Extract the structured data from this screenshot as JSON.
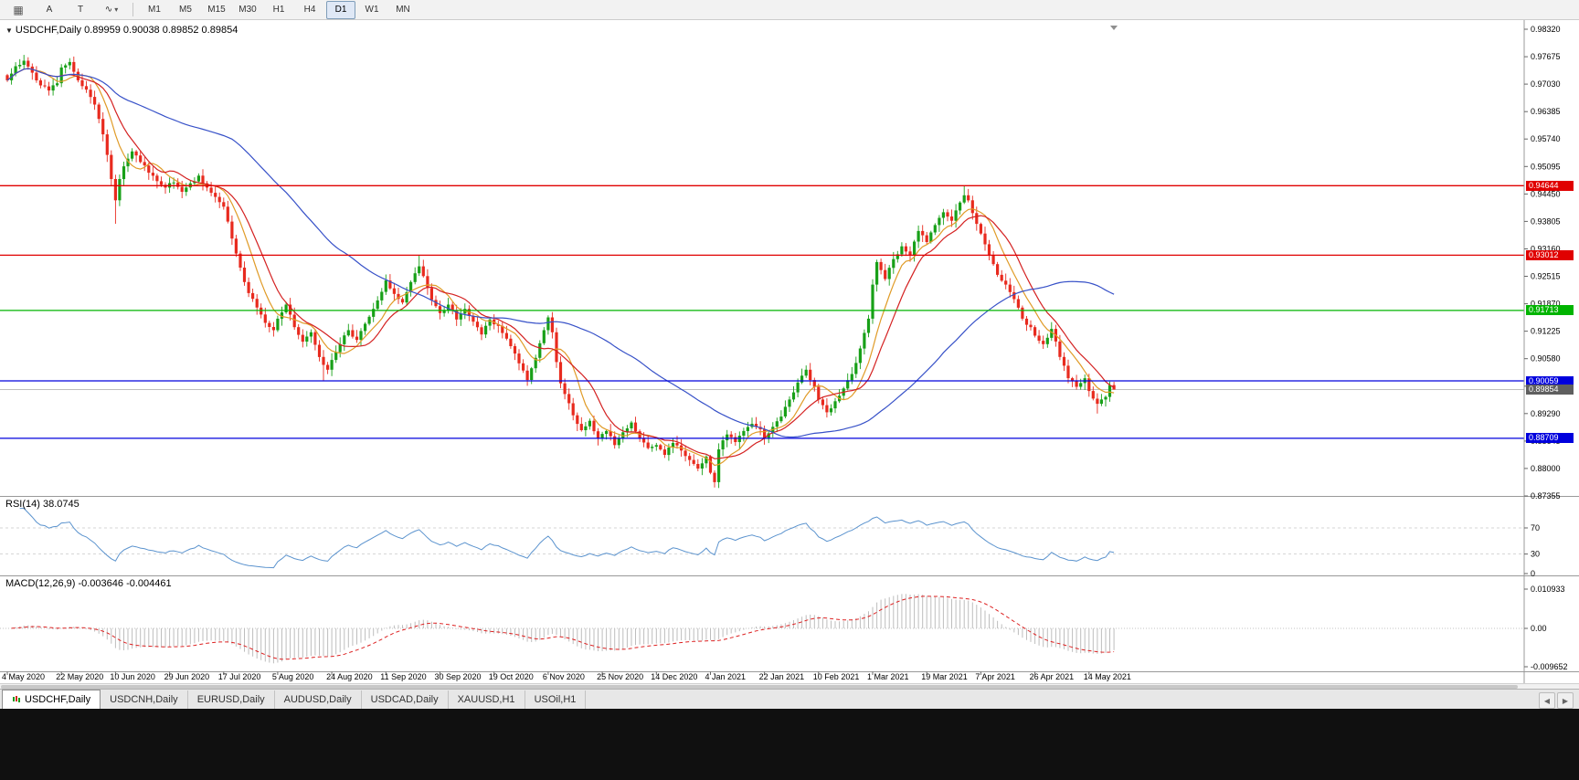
{
  "toolbar": {
    "tools": [
      {
        "glyph": "▦"
      },
      {
        "glyph": "A"
      },
      {
        "glyph": "T"
      },
      {
        "glyph": "∿"
      }
    ],
    "dropdown_caret": "▾",
    "timeframes": [
      "M1",
      "M5",
      "M15",
      "M30",
      "H1",
      "H4",
      "D1",
      "W1",
      "MN"
    ],
    "active_timeframe": "D1"
  },
  "chart": {
    "collapse_glyph": "▼",
    "title_line": "USDCHF,Daily 0.89959 0.90038 0.89852 0.89854",
    "symbol": "USDCHF",
    "period": "Daily",
    "open": "0.89959",
    "high": "0.90038",
    "low": "0.89852",
    "close": "0.89854"
  },
  "price_scale_labels": [
    "0.98320",
    "0.97675",
    "0.97030",
    "0.96385",
    "0.95740",
    "0.95095",
    "0.94450",
    "0.93805",
    "0.93160",
    "0.92515",
    "0.91870",
    "0.91225",
    "0.90580",
    "0.89935",
    "0.89290",
    "0.88645",
    "0.88000",
    "0.87355"
  ],
  "levels": [
    {
      "price": 0.94644,
      "label": "0.94644",
      "color": "#e00000"
    },
    {
      "price": 0.93012,
      "label": "0.93012",
      "color": "#e00000"
    },
    {
      "price": 0.91713,
      "label": "0.91713",
      "color": "#00b400"
    },
    {
      "price": 0.90059,
      "label": "0.90059",
      "color": "#0000dd"
    },
    {
      "price": 0.88709,
      "label": "0.88709",
      "color": "#0000dd"
    }
  ],
  "current_price": {
    "value": 0.89854,
    "label": "0.89854",
    "color": "#5f5f5f"
  },
  "indicators": {
    "rsi": {
      "label": "RSI(14) 38.0745",
      "period": 14,
      "value": 38.0745,
      "levels": [
        70,
        30
      ],
      "scale_labels": [
        "70",
        "30",
        "0"
      ],
      "color": "#5b93ce"
    },
    "macd": {
      "label": "MACD(12,26,9) -0.003646 -0.004461",
      "macd_value": -0.003646,
      "signal_value": -0.004461,
      "scale_labels": [
        "0.010933",
        "0.00",
        "-0.009652"
      ],
      "histogram_color": "#bdbdbd",
      "signal_color": "#dd2020"
    }
  },
  "date_labels": [
    "4 May 2020",
    "22 May 2020",
    "10 Jun 2020",
    "29 Jun 2020",
    "17 Jul 2020",
    "5 Aug 2020",
    "24 Aug 2020",
    "11 Sep 2020",
    "30 Sep 2020",
    "19 Oct 2020",
    "6 Nov 2020",
    "25 Nov 2020",
    "14 Dec 2020",
    "4 Jan 2021",
    "22 Jan 2021",
    "10 Feb 2021",
    "1 Mar 2021",
    "19 Mar 2021",
    "7 Apr 2021",
    "26 Apr 2021",
    "14 May 2021"
  ],
  "tabs": [
    {
      "label": "USDCHF,Daily",
      "active": true
    },
    {
      "label": "USDCNH,Daily",
      "active": false
    },
    {
      "label": "EURUSD,Daily",
      "active": false
    },
    {
      "label": "AUDUSD,Daily",
      "active": false
    },
    {
      "label": "USDCAD,Daily",
      "active": false
    },
    {
      "label": "XAUUSD,H1",
      "active": false
    },
    {
      "label": "USOil,H1",
      "active": false
    }
  ],
  "tab_scroll": {
    "left": "◀",
    "right": "▶"
  },
  "chart_data": {
    "type": "candlestick",
    "symbol": "USDCHF",
    "timeframe": "D1",
    "price_axis": {
      "max": 0.9832,
      "min": 0.87355,
      "tick_step": 0.00645
    },
    "bar_count": 267,
    "bars_per_label": 13,
    "bull_color": "#18a018",
    "bear_color": "#e82a1e",
    "noise_seed": 7,
    "close_keyframes": [
      [
        0,
        0.9712
      ],
      [
        2,
        0.9745
      ],
      [
        4,
        0.9758
      ],
      [
        6,
        0.973
      ],
      [
        8,
        0.97
      ],
      [
        10,
        0.9688
      ],
      [
        12,
        0.9705
      ],
      [
        13,
        0.9742
      ],
      [
        15,
        0.9755
      ],
      [
        17,
        0.9712
      ],
      [
        19,
        0.969
      ],
      [
        21,
        0.9655
      ],
      [
        23,
        0.9585
      ],
      [
        25,
        0.948
      ],
      [
        26,
        0.943
      ],
      [
        27,
        0.948
      ],
      [
        28,
        0.951
      ],
      [
        30,
        0.9545
      ],
      [
        32,
        0.952
      ],
      [
        34,
        0.9495
      ],
      [
        36,
        0.9475
      ],
      [
        38,
        0.946
      ],
      [
        40,
        0.9472
      ],
      [
        42,
        0.945
      ],
      [
        44,
        0.947
      ],
      [
        46,
        0.9488
      ],
      [
        48,
        0.946
      ],
      [
        50,
        0.9438
      ],
      [
        52,
        0.9415
      ],
      [
        53,
        0.938
      ],
      [
        54,
        0.934
      ],
      [
        55,
        0.9305
      ],
      [
        56,
        0.9272
      ],
      [
        57,
        0.9238
      ],
      [
        58,
        0.9212
      ],
      [
        60,
        0.9178
      ],
      [
        62,
        0.9142
      ],
      [
        64,
        0.9125
      ],
      [
        65,
        0.9152
      ],
      [
        67,
        0.9185
      ],
      [
        69,
        0.9132
      ],
      [
        71,
        0.9098
      ],
      [
        73,
        0.912
      ],
      [
        75,
        0.9062
      ],
      [
        77,
        0.9032
      ],
      [
        78,
        0.9055
      ],
      [
        80,
        0.9092
      ],
      [
        82,
        0.9125
      ],
      [
        84,
        0.9102
      ],
      [
        86,
        0.914
      ],
      [
        88,
        0.9175
      ],
      [
        90,
        0.9215
      ],
      [
        91,
        0.9242
      ],
      [
        93,
        0.921
      ],
      [
        95,
        0.919
      ],
      [
        97,
        0.9238
      ],
      [
        99,
        0.9275
      ],
      [
        100,
        0.9252
      ],
      [
        102,
        0.9196
      ],
      [
        104,
        0.9165
      ],
      [
        106,
        0.9185
      ],
      [
        108,
        0.915
      ],
      [
        110,
        0.9175
      ],
      [
        112,
        0.9145
      ],
      [
        114,
        0.9115
      ],
      [
        116,
        0.915
      ],
      [
        118,
        0.9135
      ],
      [
        120,
        0.9105
      ],
      [
        122,
        0.907
      ],
      [
        124,
        0.903
      ],
      [
        125,
        0.9008
      ],
      [
        127,
        0.906
      ],
      [
        129,
        0.9125
      ],
      [
        130,
        0.9155
      ],
      [
        131,
        0.912
      ],
      [
        132,
        0.905
      ],
      [
        133,
        0.9
      ],
      [
        134,
        0.8975
      ],
      [
        136,
        0.8925
      ],
      [
        138,
        0.889
      ],
      [
        140,
        0.8912
      ],
      [
        142,
        0.887
      ],
      [
        144,
        0.8888
      ],
      [
        146,
        0.8855
      ],
      [
        148,
        0.8885
      ],
      [
        150,
        0.8908
      ],
      [
        152,
        0.887
      ],
      [
        154,
        0.8848
      ],
      [
        156,
        0.8855
      ],
      [
        158,
        0.8832
      ],
      [
        160,
        0.886
      ],
      [
        162,
        0.8842
      ],
      [
        164,
        0.882
      ],
      [
        166,
        0.88
      ],
      [
        168,
        0.8828
      ],
      [
        169,
        0.879
      ],
      [
        170,
        0.8768
      ],
      [
        171,
        0.8845
      ],
      [
        173,
        0.888
      ],
      [
        175,
        0.8862
      ],
      [
        177,
        0.8888
      ],
      [
        179,
        0.8905
      ],
      [
        181,
        0.8892
      ],
      [
        182,
        0.8872
      ],
      [
        184,
        0.8898
      ],
      [
        186,
        0.8922
      ],
      [
        188,
        0.8962
      ],
      [
        190,
        0.9002
      ],
      [
        192,
        0.9032
      ],
      [
        194,
        0.8992
      ],
      [
        195,
        0.8962
      ],
      [
        197,
        0.8932
      ],
      [
        199,
        0.8958
      ],
      [
        201,
        0.8988
      ],
      [
        203,
        0.9022
      ],
      [
        205,
        0.9082
      ],
      [
        207,
        0.9152
      ],
      [
        208,
        0.9232
      ],
      [
        209,
        0.9285
      ],
      [
        211,
        0.9245
      ],
      [
        213,
        0.9292
      ],
      [
        215,
        0.9322
      ],
      [
        217,
        0.9302
      ],
      [
        219,
        0.9358
      ],
      [
        221,
        0.9332
      ],
      [
        223,
        0.9372
      ],
      [
        225,
        0.9402
      ],
      [
        227,
        0.9382
      ],
      [
        229,
        0.9425
      ],
      [
        230,
        0.9442
      ],
      [
        231,
        0.943
      ],
      [
        232,
        0.94
      ],
      [
        234,
        0.9352
      ],
      [
        236,
        0.9302
      ],
      [
        238,
        0.9255
      ],
      [
        240,
        0.9232
      ],
      [
        242,
        0.9198
      ],
      [
        244,
        0.9152
      ],
      [
        246,
        0.9132
      ],
      [
        247,
        0.9112
      ],
      [
        249,
        0.9092
      ],
      [
        251,
        0.9128
      ],
      [
        253,
        0.9062
      ],
      [
        255,
        0.9012
      ],
      [
        257,
        0.8992
      ],
      [
        259,
        0.9012
      ],
      [
        260,
        0.8982
      ],
      [
        262,
        0.8952
      ],
      [
        264,
        0.8968
      ],
      [
        265,
        0.8996
      ],
      [
        266,
        0.89854
      ]
    ],
    "wick_overrides": [
      {
        "i": 26,
        "low": 0.9375
      },
      {
        "i": 76,
        "low": 0.9006
      },
      {
        "i": 99,
        "high": 0.93
      },
      {
        "i": 125,
        "low": 0.8998
      },
      {
        "i": 170,
        "low": 0.8757
      },
      {
        "i": 230,
        "high": 0.94644
      },
      {
        "i": 262,
        "low": 0.8929
      }
    ],
    "last_bar": {
      "open": 0.89959,
      "high": 0.90038,
      "low": 0.89852,
      "close": 0.89854
    },
    "moving_averages": [
      {
        "period": 8,
        "color": "#e09b27"
      },
      {
        "period": 13,
        "color": "#d42121"
      },
      {
        "period": 55,
        "color": "#3751c8"
      }
    ],
    "rsi_period": 14,
    "macd_params": [
      12,
      26,
      9
    ],
    "macd_axis": {
      "max": 0.010933,
      "zero": 0.0,
      "min": -0.009652
    }
  }
}
